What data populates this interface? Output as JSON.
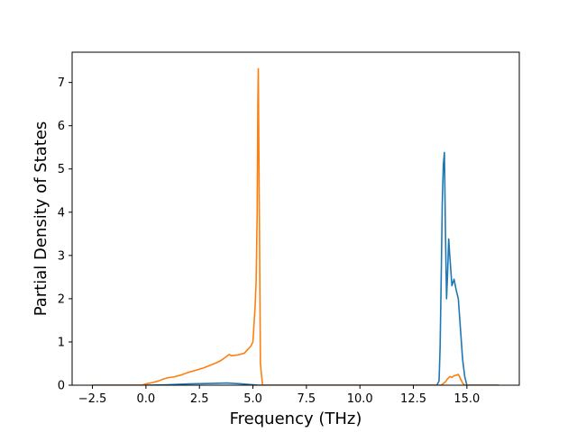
{
  "chart_data": {
    "type": "line",
    "title": "",
    "xlabel": "Frequency (THz)",
    "ylabel": "Partial Density of States",
    "xlim": [
      -3.45,
      17.45
    ],
    "ylim": [
      0,
      7.7
    ],
    "xticks": [
      -2.5,
      0.0,
      2.5,
      5.0,
      7.5,
      10.0,
      12.5,
      15.0
    ],
    "xtick_labels": [
      "−2.5",
      "0.0",
      "2.5",
      "5.0",
      "7.5",
      "10.0",
      "12.5",
      "15.0"
    ],
    "yticks": [
      0,
      1,
      2,
      3,
      4,
      5,
      6,
      7
    ],
    "ytick_labels": [
      "0",
      "1",
      "2",
      "3",
      "4",
      "5",
      "6",
      "7"
    ],
    "grid": false,
    "legend": "none",
    "series": [
      {
        "color": "#1f77b4",
        "x": [
          -2.5,
          0.0,
          1.0,
          2.0,
          3.0,
          3.8,
          4.5,
          5.0,
          5.25,
          5.4,
          13.6,
          13.7,
          13.75,
          13.8,
          13.85,
          13.9,
          13.95,
          14.0,
          14.05,
          14.1,
          14.15,
          14.2,
          14.3,
          14.4,
          14.5,
          14.6,
          14.7,
          14.8,
          14.9,
          15.0,
          16.5
        ],
        "y": [
          0.0,
          0.0,
          0.01,
          0.03,
          0.04,
          0.05,
          0.03,
          0.01,
          0.0,
          0.0,
          0.0,
          0.1,
          0.9,
          2.5,
          4.2,
          5.1,
          5.38,
          3.5,
          2.0,
          2.6,
          3.38,
          3.0,
          2.3,
          2.45,
          2.2,
          2.0,
          1.3,
          0.6,
          0.2,
          0.0,
          0.0
        ]
      },
      {
        "color": "#ff7f0e",
        "x": [
          -2.5,
          -0.2,
          0.0,
          0.3,
          0.6,
          0.8,
          1.0,
          1.3,
          1.6,
          2.0,
          2.3,
          2.7,
          3.0,
          3.3,
          3.5,
          3.7,
          3.8,
          3.9,
          4.0,
          4.3,
          4.6,
          4.8,
          4.9,
          5.0,
          5.05,
          5.1,
          5.15,
          5.2,
          5.23,
          5.25,
          5.3,
          5.35,
          5.45,
          13.8,
          13.9,
          14.0,
          14.1,
          14.2,
          14.3,
          14.4,
          14.5,
          14.6,
          14.7,
          14.8,
          14.9,
          15.0,
          16.5
        ],
        "y": [
          0.0,
          0.0,
          0.03,
          0.06,
          0.1,
          0.14,
          0.17,
          0.19,
          0.23,
          0.3,
          0.34,
          0.4,
          0.46,
          0.52,
          0.57,
          0.64,
          0.68,
          0.71,
          0.68,
          0.7,
          0.74,
          0.85,
          0.9,
          1.0,
          1.4,
          1.8,
          2.4,
          4.0,
          6.5,
          7.32,
          4.0,
          0.5,
          0.0,
          0.0,
          0.04,
          0.08,
          0.15,
          0.2,
          0.18,
          0.22,
          0.23,
          0.25,
          0.15,
          0.05,
          0.0,
          0.0,
          0.0
        ]
      }
    ]
  }
}
